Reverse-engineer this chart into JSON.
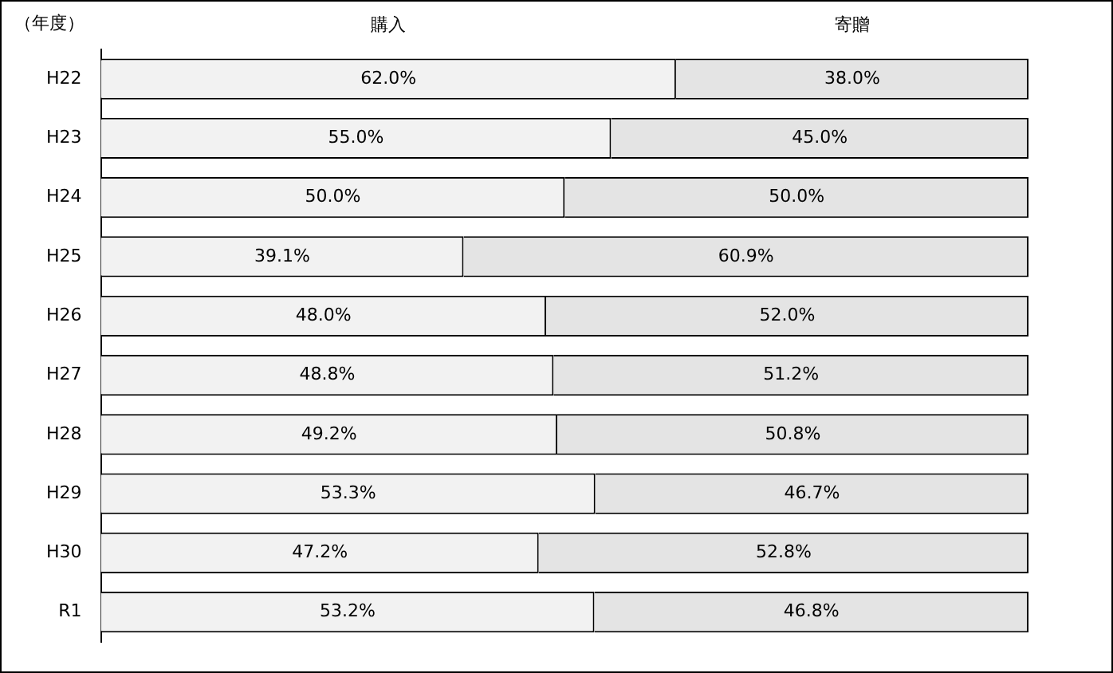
{
  "chart_data": {
    "type": "bar",
    "orientation": "horizontal",
    "stacked": true,
    "ylabel": "（年度）",
    "categories": [
      "H22",
      "H23",
      "H24",
      "H25",
      "H26",
      "H27",
      "H28",
      "H29",
      "H30",
      "R1"
    ],
    "series": [
      {
        "name": "購入",
        "color": "#f2f2f2",
        "values": [
          62.0,
          55.0,
          50.0,
          39.1,
          48.0,
          48.8,
          49.2,
          53.3,
          47.2,
          53.2
        ],
        "value_labels": [
          "62.0%",
          "55.0%",
          "50.0%",
          "39.1%",
          "48.0%",
          "48.8%",
          "49.2%",
          "53.3%",
          "47.2%",
          "53.2%"
        ]
      },
      {
        "name": "寄贈",
        "color": "#e4e4e4",
        "values": [
          38.0,
          45.0,
          50.0,
          60.9,
          52.0,
          51.2,
          50.8,
          46.7,
          52.8,
          46.8
        ],
        "value_labels": [
          "38.0%",
          "45.0%",
          "50.0%",
          "60.9%",
          "52.0%",
          "51.2%",
          "50.8%",
          "46.7%",
          "52.8%",
          "46.8%"
        ]
      }
    ],
    "xlim": [
      0,
      100
    ],
    "tick_labels": "y",
    "grid": false,
    "legend": "top"
  }
}
